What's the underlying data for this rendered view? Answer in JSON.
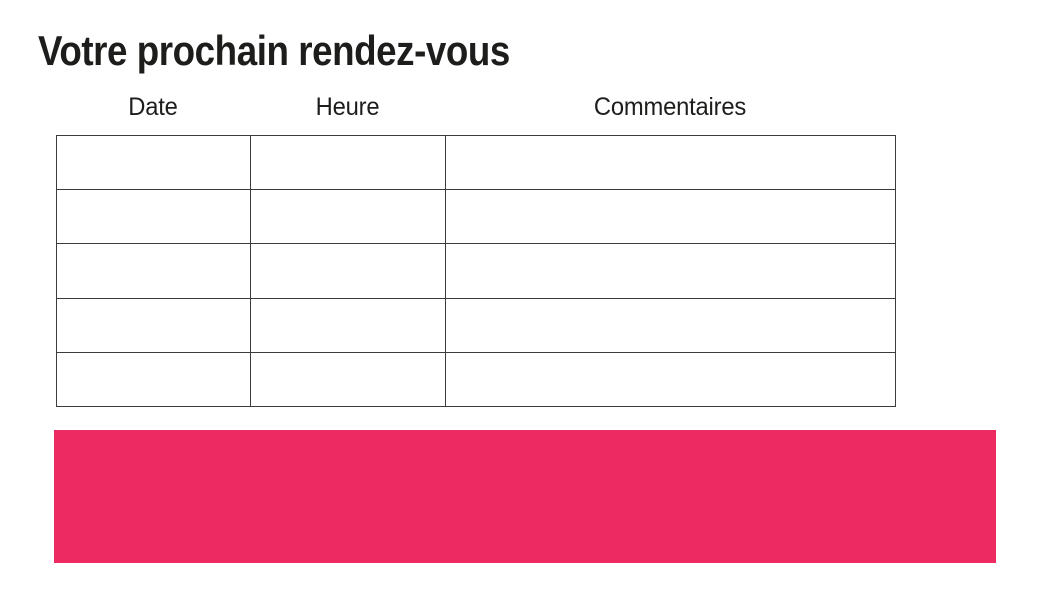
{
  "page": {
    "title": "Votre prochain rendez-vous"
  },
  "table": {
    "columns": [
      {
        "label": "Date"
      },
      {
        "label": "Heure"
      },
      {
        "label": "Commentaires"
      }
    ],
    "rows": [
      [
        "",
        "",
        ""
      ],
      [
        "",
        "",
        ""
      ],
      [
        "",
        "",
        ""
      ],
      [
        "",
        "",
        ""
      ],
      [
        "",
        "",
        ""
      ]
    ]
  },
  "banner": {
    "text": ""
  },
  "colors": {
    "accent_pink": "#ee2a63",
    "table_border": "#3c3c3b",
    "text": "#1d1d1b",
    "background": "#ffffff"
  }
}
